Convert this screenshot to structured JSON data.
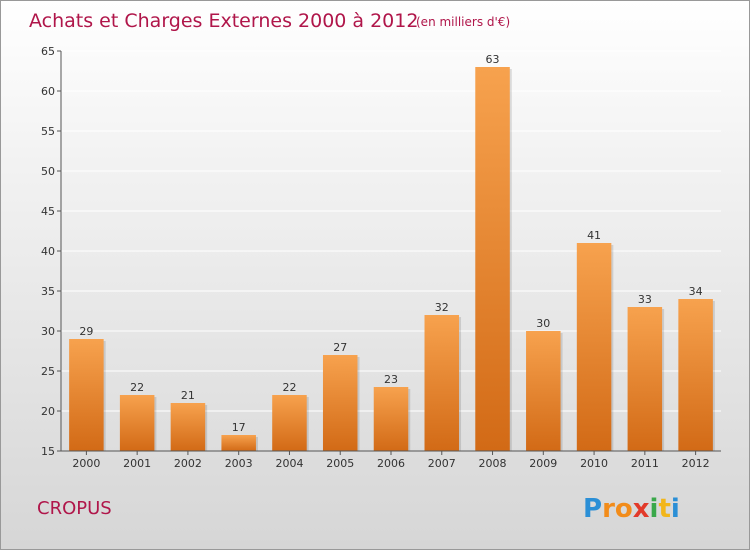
{
  "chart_data": {
    "type": "bar",
    "title": "Achats et Charges Externes 2000 à 2012",
    "subtitle": "(en milliers d'€)",
    "categories": [
      "2000",
      "2001",
      "2002",
      "2003",
      "2004",
      "2005",
      "2006",
      "2007",
      "2008",
      "2009",
      "2010",
      "2011",
      "2012"
    ],
    "values": [
      29,
      22,
      21,
      17,
      22,
      27,
      23,
      32,
      63,
      30,
      41,
      33,
      34
    ],
    "ylim": [
      15,
      65
    ],
    "yticks": [
      15,
      20,
      25,
      30,
      35,
      40,
      45,
      50,
      55,
      60,
      65
    ],
    "grid": true,
    "bar_color_top": "#f7a24e",
    "bar_color_bottom": "#d26a16",
    "xlabel": "",
    "ylabel": ""
  },
  "place": "CROPUS",
  "logo": {
    "letters": [
      "P",
      "r",
      "o",
      "x",
      "i",
      "t",
      "i"
    ],
    "colors": [
      "#2b8fd6",
      "#f28c1a",
      "#f28c1a",
      "#e23a2a",
      "#3aa84a",
      "#f2b61a",
      "#2b8fd6"
    ]
  },
  "colors": {
    "accent": "#b0164a"
  }
}
